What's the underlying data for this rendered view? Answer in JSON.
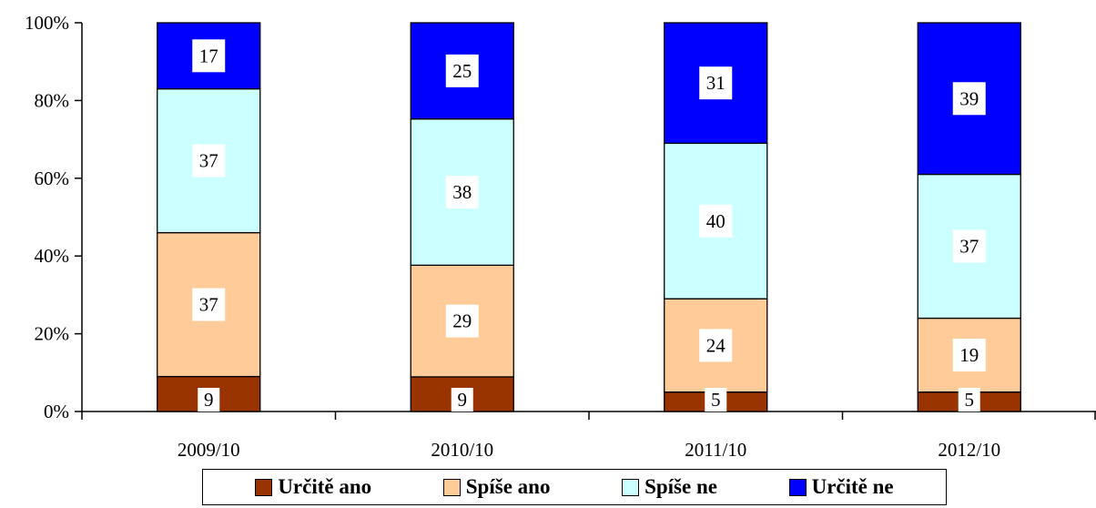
{
  "chart_data": {
    "type": "bar",
    "stacked": true,
    "percent_stacked": true,
    "title": "",
    "xlabel": "",
    "ylabel": "",
    "ylim": [
      0,
      100
    ],
    "y_tick_labels": [
      "0%",
      "20%",
      "40%",
      "60%",
      "80%",
      "100%"
    ],
    "categories": [
      "2009/10",
      "2010/10",
      "2011/10",
      "2012/10"
    ],
    "series": [
      {
        "name": "Určitě ano",
        "color": "#993300",
        "values": [
          9,
          9,
          5,
          5
        ]
      },
      {
        "name": "Spíše ano",
        "color": "#FFCC99",
        "values": [
          37,
          29,
          24,
          19
        ]
      },
      {
        "name": "Spíše ne",
        "color": "#CCFFFF",
        "values": [
          37,
          38,
          40,
          37
        ]
      },
      {
        "name": "Určitě ne",
        "color": "#0000FF",
        "values": [
          17,
          25,
          31,
          39
        ]
      }
    ],
    "grid": false,
    "legend_position": "bottom"
  }
}
